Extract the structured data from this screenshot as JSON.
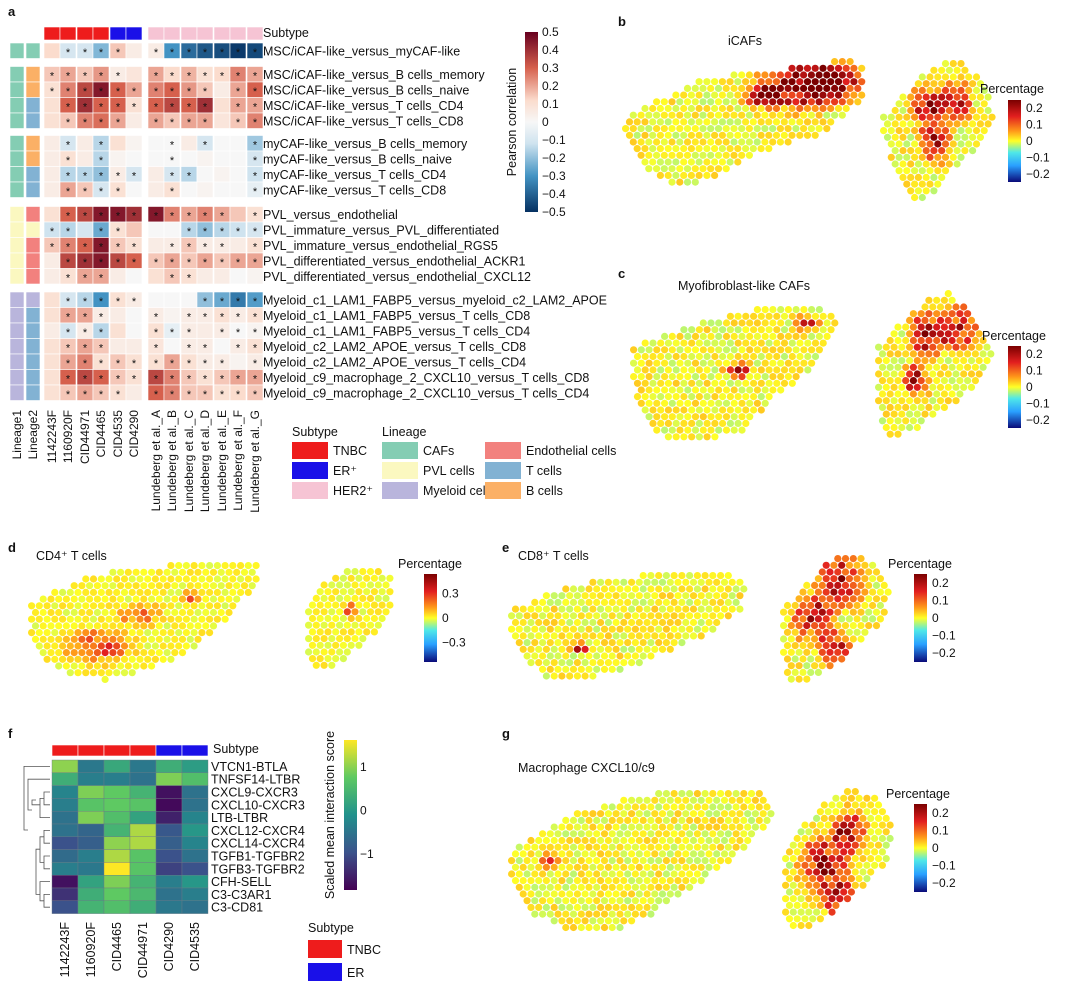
{
  "chart_data": [
    {
      "panel": "a",
      "type": "heatmap",
      "subtype_header": "Subtype",
      "colorbar_title": "Pearson correlation",
      "colorbar_ticks": [
        "0.5",
        "0.4",
        "0.3",
        "0.2",
        "0.1",
        "0",
        "−0.1",
        "−0.2",
        "−0.3",
        "−0.4",
        "−0.5"
      ],
      "vrange": [
        -0.5,
        0.5
      ],
      "columns": [
        "Lineage1",
        "Lineage2",
        "1142243F",
        "1160920F",
        "CID44971",
        "CID4465",
        "CID4535",
        "CID4290",
        "Lundeberg et al._A",
        "Lundeberg et al._B",
        "Lundeberg et al._C",
        "Lundeberg et al._D",
        "Lundeberg et al._E",
        "Lundeberg et al._F",
        "Lundeberg et al._G"
      ],
      "rows": [
        "MSC/iCAF-like_versus_myCAF-like",
        "MSC/iCAF-like_versus_B cells_memory",
        "MSC/iCAF-like_versus_B cells_naive",
        "MSC/iCAF-like_versus_T cells_CD4",
        "MSC/iCAF-like_versus_T cells_CD8",
        "myCAF-like_versus_B cells_memory",
        "myCAF-like_versus_B cells_naive",
        "myCAF-like_versus_T cells_CD4",
        "myCAF-like_versus_T cells_CD8",
        "PVL_versus_endothelial",
        "PVL_immature_versus_PVL_differentiated",
        "PVL_immature_versus_endothelial_RGS5",
        "PVL_differentiated_versus_endothelial_ACKR1",
        "PVL_differentiated_versus_endothelial_CXCL12",
        "Myeloid_c1_LAM1_FABP5_versus_myeloid_c2_LAM2_APOE",
        "Myeloid_c1_LAM1_FABP5_versus_T cells_CD8",
        "Myeloid_c1_LAM1_FABP5_versus_T cells_CD4",
        "Myeloid_c2_LAM2_APOE_versus_T cells_CD8",
        "Myeloid_c2_LAM2_APOE_versus_T cells_CD4",
        "Myeloid_c9_macrophage_2_CXCL10_versus_T cells_CD8",
        "Myeloid_c9_macrophage_2_CXCL10_versus_T cells_CD4"
      ],
      "lineage1": [
        "CAFs",
        "CAFs",
        "CAFs",
        "CAFs",
        "CAFs",
        "CAFs",
        "CAFs",
        "CAFs",
        "CAFs",
        "PVL cells",
        "PVL cells",
        "PVL cells",
        "PVL cells",
        "PVL cells",
        "Myeloid cells",
        "Myeloid cells",
        "Myeloid cells",
        "Myeloid cells",
        "Myeloid cells",
        "Myeloid cells",
        "Myeloid cells"
      ],
      "lineage2": [
        "CAFs",
        "B cells",
        "B cells",
        "T cells",
        "T cells",
        "B cells",
        "B cells",
        "T cells",
        "T cells",
        "Endothelial cells",
        "PVL cells",
        "Endothelial cells",
        "Endothelial cells",
        "Endothelial cells",
        "Myeloid cells",
        "T cells",
        "T cells",
        "T cells",
        "T cells",
        "T cells",
        "T cells"
      ],
      "subtype_per_column": [
        "TNBC",
        "TNBC",
        "TNBC",
        "TNBC",
        "ER+",
        "ER+",
        "HER2+",
        "HER2+",
        "HER2+",
        "HER2+",
        "HER2+",
        "HER2+",
        "HER2+"
      ],
      "values": [
        [
          0.12,
          -0.1,
          -0.1,
          -0.22,
          0.15,
          0.05,
          0.05,
          -0.3,
          -0.38,
          -0.42,
          -0.44,
          -0.48,
          -0.45
        ],
        [
          0.15,
          0.2,
          0.15,
          0.22,
          0.05,
          0.08,
          0.2,
          0.12,
          0.18,
          0.1,
          0.12,
          0.25,
          0.2
        ],
        [
          0.1,
          0.25,
          0.35,
          0.45,
          0.3,
          0.2,
          0.25,
          0.3,
          0.22,
          0.15,
          0.05,
          0.2,
          0.3
        ],
        [
          0.1,
          0.3,
          0.4,
          0.3,
          0.3,
          0.1,
          0.3,
          0.35,
          0.3,
          0.4,
          0.1,
          0.2,
          0.2
        ],
        [
          0.1,
          0.15,
          0.25,
          0.28,
          0.2,
          0.05,
          0.2,
          0.15,
          0.2,
          0.2,
          0.08,
          0.15,
          0.25
        ],
        [
          0.05,
          -0.1,
          0.05,
          -0.15,
          0.1,
          0.02,
          0.0,
          0.0,
          0.05,
          -0.1,
          0.0,
          0.0,
          -0.18
        ],
        [
          0.05,
          0.1,
          0.05,
          -0.15,
          0.02,
          0.0,
          0.0,
          0.0,
          0.0,
          0.02,
          0.0,
          0.0,
          -0.1
        ],
        [
          0.05,
          -0.15,
          -0.15,
          -0.2,
          0.05,
          -0.1,
          0.05,
          -0.1,
          -0.15,
          0.0,
          0.02,
          0.0,
          -0.12
        ],
        [
          0.05,
          0.2,
          0.15,
          -0.1,
          0.1,
          0.0,
          0.05,
          0.1,
          0.0,
          0.02,
          0.0,
          0.0,
          -0.05
        ],
        [
          0.1,
          0.3,
          0.35,
          0.45,
          0.45,
          0.4,
          0.45,
          0.25,
          0.2,
          0.25,
          0.2,
          0.15,
          0.1
        ],
        [
          -0.12,
          -0.15,
          -0.1,
          -0.25,
          0.1,
          0.15,
          0.0,
          0.0,
          -0.15,
          -0.2,
          -0.15,
          -0.12,
          -0.1
        ],
        [
          0.15,
          0.25,
          0.3,
          0.45,
          0.15,
          0.1,
          0.05,
          0.05,
          0.15,
          0.05,
          0.05,
          0.05,
          0.1
        ],
        [
          0.05,
          0.35,
          0.4,
          0.45,
          0.35,
          0.3,
          0.15,
          0.2,
          0.15,
          0.2,
          0.15,
          0.2,
          0.2
        ],
        [
          0.05,
          0.1,
          0.2,
          0.2,
          0.05,
          0.0,
          0.1,
          0.15,
          0.1,
          0.05,
          0.05,
          0.0,
          0.02
        ],
        [
          0.1,
          -0.1,
          -0.15,
          -0.3,
          0.1,
          0.05,
          0.0,
          0.0,
          0.0,
          -0.2,
          -0.25,
          -0.35,
          -0.28
        ],
        [
          0.1,
          0.2,
          0.2,
          0.05,
          0.05,
          0.0,
          0.05,
          0.02,
          0.05,
          0.05,
          0.1,
          0.05,
          0.1
        ],
        [
          0.05,
          -0.1,
          0.05,
          -0.15,
          0.1,
          0.0,
          0.1,
          -0.05,
          0.05,
          0.05,
          0.05,
          0.0,
          0.02
        ],
        [
          0.1,
          0.15,
          0.2,
          0.15,
          0.05,
          0.05,
          0.08,
          0.0,
          0.05,
          0.05,
          0.0,
          0.05,
          0.1
        ],
        [
          0.1,
          0.2,
          0.25,
          0.1,
          0.15,
          0.1,
          0.1,
          0.2,
          0.1,
          0.05,
          0.05,
          0.02,
          0.05
        ],
        [
          0.1,
          0.3,
          0.35,
          0.3,
          0.15,
          0.1,
          0.35,
          0.25,
          0.15,
          0.1,
          0.15,
          0.2,
          0.2
        ],
        [
          0.1,
          0.15,
          0.2,
          0.15,
          0.1,
          0.05,
          0.3,
          0.25,
          0.15,
          0.15,
          0.1,
          0.12,
          0.15
        ]
      ],
      "significance": [
        [
          0,
          1,
          1,
          1,
          1,
          0,
          1,
          1,
          1,
          1,
          1,
          1,
          1
        ],
        [
          1,
          1,
          1,
          1,
          1,
          0,
          1,
          1,
          1,
          1,
          1,
          1,
          1
        ],
        [
          1,
          1,
          1,
          1,
          1,
          1,
          1,
          1,
          1,
          1,
          0,
          1,
          1
        ],
        [
          0,
          1,
          1,
          1,
          1,
          1,
          1,
          1,
          1,
          1,
          0,
          1,
          1
        ],
        [
          0,
          1,
          1,
          1,
          1,
          0,
          1,
          1,
          1,
          1,
          0,
          1,
          1
        ],
        [
          0,
          1,
          0,
          1,
          0,
          0,
          0,
          1,
          0,
          1,
          0,
          0,
          1
        ],
        [
          0,
          1,
          0,
          1,
          0,
          0,
          0,
          1,
          0,
          0,
          0,
          0,
          1
        ],
        [
          0,
          1,
          1,
          1,
          1,
          1,
          0,
          1,
          1,
          0,
          0,
          0,
          1
        ],
        [
          0,
          1,
          1,
          1,
          1,
          0,
          0,
          1,
          0,
          0,
          0,
          0,
          1
        ],
        [
          0,
          1,
          1,
          1,
          1,
          1,
          1,
          1,
          1,
          1,
          1,
          0,
          1
        ],
        [
          1,
          1,
          0,
          1,
          1,
          0,
          0,
          0,
          1,
          1,
          1,
          1,
          1
        ],
        [
          1,
          1,
          1,
          1,
          1,
          1,
          0,
          1,
          1,
          1,
          1,
          0,
          1
        ],
        [
          0,
          1,
          1,
          1,
          1,
          1,
          1,
          1,
          1,
          1,
          1,
          1,
          1
        ],
        [
          0,
          1,
          1,
          1,
          0,
          0,
          0,
          1,
          1,
          0,
          0,
          0,
          0
        ],
        [
          0,
          1,
          1,
          1,
          1,
          1,
          0,
          0,
          0,
          1,
          1,
          1,
          1
        ],
        [
          0,
          1,
          1,
          1,
          0,
          0,
          1,
          0,
          1,
          1,
          1,
          1,
          1
        ],
        [
          0,
          1,
          1,
          1,
          0,
          0,
          1,
          1,
          1,
          0,
          1,
          1,
          1
        ],
        [
          0,
          1,
          1,
          1,
          0,
          0,
          1,
          0,
          1,
          1,
          0,
          1,
          1
        ],
        [
          0,
          1,
          1,
          1,
          1,
          1,
          1,
          1,
          1,
          1,
          1,
          0,
          1
        ],
        [
          0,
          1,
          1,
          1,
          1,
          1,
          1,
          1,
          1,
          1,
          1,
          1,
          1
        ],
        [
          0,
          1,
          1,
          1,
          1,
          0,
          1,
          1,
          1,
          1,
          1,
          1,
          1
        ]
      ],
      "legend": {
        "subtype_title": "Subtype",
        "lineage_title": "Lineage",
        "subtype_items": [
          {
            "label": "TNBC",
            "color": "#ee1c1c"
          },
          {
            "label": "ER⁺",
            "color": "#1a10e8"
          },
          {
            "label": "HER2⁺",
            "color": "#f6c4d4"
          }
        ],
        "lineage_items": [
          {
            "label": "CAFs",
            "color": "#84cdb3"
          },
          {
            "label": "PVL cells",
            "color": "#fbf8c0"
          },
          {
            "label": "Myeloid cells",
            "color": "#b9b5dc"
          },
          {
            "label": "Endothelial cells",
            "color": "#f2817e"
          },
          {
            "label": "T cells",
            "color": "#82b2d3"
          },
          {
            "label": "B cells",
            "color": "#fbb066"
          }
        ]
      }
    },
    {
      "panel": "b",
      "type": "scatter",
      "title": "iCAFs",
      "legend_title": "Percentage",
      "colorbar_ticks": [
        "0.2",
        "0.1",
        "0",
        "−0.1",
        "−0.2"
      ],
      "vrange": [
        -0.25,
        0.25
      ],
      "hotspots": {
        "left": [
          [
            0.74,
            0.22,
            0.25
          ],
          [
            0.86,
            0.18,
            0.22
          ],
          [
            0.6,
            0.3,
            0.12
          ]
        ],
        "right": [
          [
            0.4,
            0.35,
            0.2
          ],
          [
            0.65,
            0.3,
            0.2
          ],
          [
            0.5,
            0.6,
            0.18
          ]
        ]
      }
    },
    {
      "panel": "c",
      "type": "scatter",
      "title": "Myofibroblast-like CAFs",
      "legend_title": "Percentage",
      "colorbar_ticks": [
        "0.2",
        "0.1",
        "0",
        "−0.1",
        "−0.2"
      ],
      "vrange": [
        -0.25,
        0.25
      ],
      "hotspots": {
        "left": [
          [
            0.52,
            0.48,
            0.08
          ],
          [
            0.85,
            0.12,
            0.08
          ]
        ],
        "right": [
          [
            0.45,
            0.3,
            0.22
          ],
          [
            0.35,
            0.6,
            0.15
          ],
          [
            0.7,
            0.25,
            0.2
          ]
        ]
      }
    },
    {
      "panel": "d",
      "type": "scatter",
      "title": "CD4⁺ T cells",
      "legend_title": "Percentage",
      "colorbar_ticks": [
        "0.3",
        "0",
        "−0.3"
      ],
      "vrange": [
        -0.4,
        0.4
      ],
      "hotspots": {
        "left": [
          [
            0.3,
            0.72,
            0.2
          ],
          [
            0.48,
            0.45,
            0.12
          ],
          [
            0.7,
            0.3,
            0.06
          ]
        ],
        "right": [
          [
            0.5,
            0.4,
            0.1
          ]
        ]
      }
    },
    {
      "panel": "e",
      "type": "scatter",
      "title": "CD8⁺ T cells",
      "legend_title": "Percentage",
      "colorbar_ticks": [
        "0.2",
        "0.1",
        "0",
        "−0.1",
        "−0.2"
      ],
      "vrange": [
        -0.25,
        0.25
      ],
      "hotspots": {
        "left": [
          [
            0.3,
            0.7,
            0.06
          ]
        ],
        "right": [
          [
            0.55,
            0.2,
            0.3
          ],
          [
            0.3,
            0.5,
            0.25
          ],
          [
            0.5,
            0.75,
            0.2
          ]
        ]
      }
    },
    {
      "panel": "f",
      "type": "heatmap",
      "subtype_header": "Subtype",
      "colorbar_title": "Scaled mean interaction score",
      "colorbar_ticks": [
        "1",
        "0",
        "−1"
      ],
      "vrange": [
        -2,
        2
      ],
      "columns": [
        "1142243F",
        "1160920F",
        "CID4465",
        "CID44971",
        "CID4290",
        "CID4535"
      ],
      "subtype_per_column": [
        "TNBC",
        "TNBC",
        "TNBC",
        "TNBC",
        "ER",
        "ER"
      ],
      "rows": [
        "VTCN1-BTLA",
        "TNFSF14-LTBR",
        "CXCL9-CXCR3",
        "CXCL10-CXCR3",
        "LTB-LTBR",
        "CXCL12-CXCR4",
        "CXCL14-CXCR4",
        "TGFB1-TGFBR2",
        "TGFB3-TGFBR2",
        "CFH-SELL",
        "C3-C3AR1",
        "C3-CD81"
      ],
      "values": [
        [
          1.3,
          -0.4,
          0.4,
          -0.4,
          0.5,
          0.2
        ],
        [
          0.5,
          -0.3,
          -0.3,
          -0.5,
          1.2,
          0.8
        ],
        [
          -0.2,
          1.2,
          1.0,
          0.6,
          -1.8,
          -0.5
        ],
        [
          -0.3,
          0.9,
          1.0,
          0.9,
          -1.9,
          -0.5
        ],
        [
          -0.5,
          1.2,
          0.8,
          0.3,
          -1.6,
          -0.2
        ],
        [
          -0.5,
          -0.7,
          0.6,
          1.5,
          -0.9,
          0.1
        ],
        [
          -1.0,
          -0.8,
          1.3,
          1.5,
          -0.8,
          -0.2
        ],
        [
          -0.6,
          -0.3,
          1.5,
          0.9,
          -1.0,
          -0.5
        ],
        [
          -0.3,
          -0.4,
          2.0,
          0.9,
          -1.2,
          -1.0
        ],
        [
          -1.8,
          0.3,
          1.2,
          0.6,
          -0.3,
          0.1
        ],
        [
          -1.4,
          0.5,
          1.0,
          0.7,
          -0.5,
          -0.3
        ],
        [
          -1.0,
          0.6,
          0.8,
          0.5,
          -0.4,
          -0.5
        ]
      ],
      "legend": {
        "title": "Subtype",
        "items": [
          {
            "label": "TNBC",
            "color": "#ee1c1c"
          },
          {
            "label": "ER",
            "color": "#1a10e8"
          }
        ]
      }
    },
    {
      "panel": "g",
      "type": "scatter",
      "title": "Macrophage CXCL10/c9",
      "legend_title": "Percentage",
      "colorbar_ticks": [
        "0.2",
        "0.1",
        "0",
        "−0.1",
        "−0.2"
      ],
      "vrange": [
        -0.25,
        0.25
      ],
      "hotspots": {
        "left": [
          [
            0.15,
            0.5,
            0.06
          ]
        ],
        "right": [
          [
            0.4,
            0.55,
            0.3
          ],
          [
            0.6,
            0.3,
            0.2
          ],
          [
            0.55,
            0.8,
            0.2
          ]
        ]
      }
    }
  ]
}
